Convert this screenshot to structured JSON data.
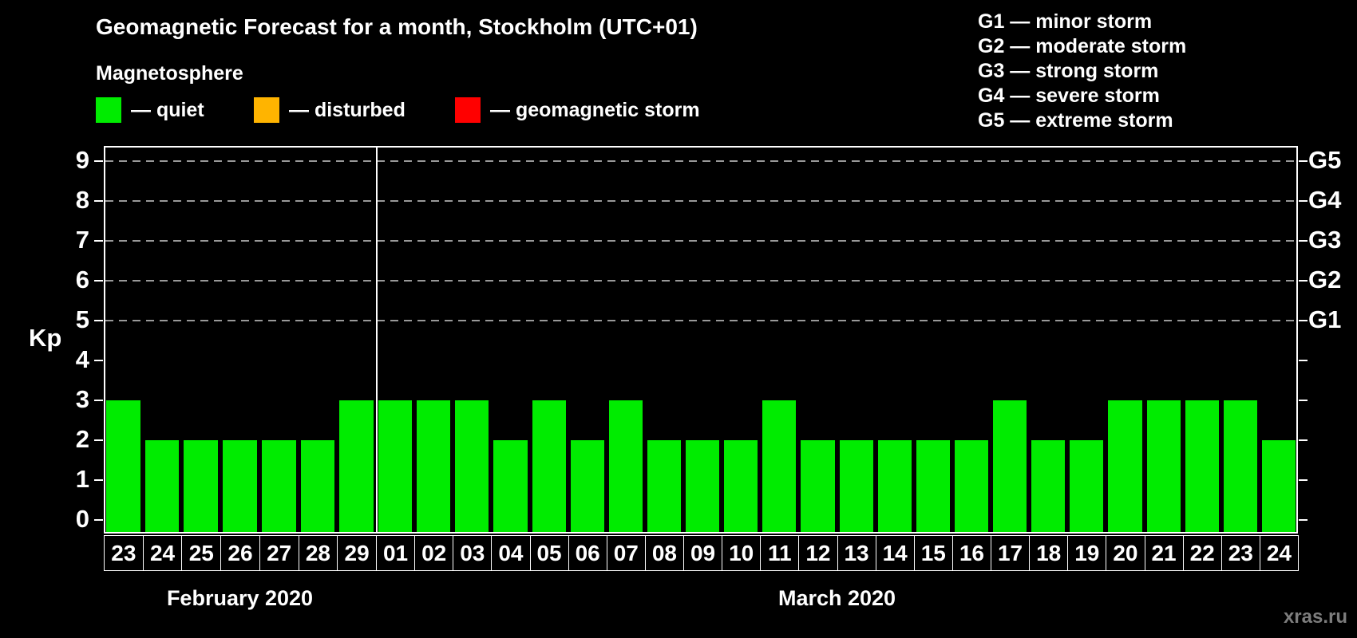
{
  "header": {
    "title": "Geomagnetic Forecast for a month, Stockholm (UTC+01)",
    "subtitle": "Magnetosphere"
  },
  "legend": {
    "items": [
      {
        "key": "quiet",
        "color": "#00ec00",
        "label": "— quiet"
      },
      {
        "key": "disturbed",
        "color": "#ffb400",
        "label": "— disturbed"
      },
      {
        "key": "geomagnetic-storm",
        "color": "#ff0000",
        "label": "— geomagnetic storm"
      }
    ]
  },
  "g_scale_legend": {
    "items": [
      "G1 — minor storm",
      "G2 — moderate storm",
      "G3 — strong storm",
      "G4 — severe storm",
      "G5 — extreme storm"
    ]
  },
  "chart_data": {
    "type": "bar",
    "title": "Geomagnetic Forecast for a month, Stockholm (UTC+01)",
    "ylabel": "Kp",
    "ylim": [
      0,
      9
    ],
    "yticks": [
      0,
      1,
      2,
      3,
      4,
      5,
      6,
      7,
      8,
      9
    ],
    "gridlines_at": [
      5,
      6,
      7,
      8,
      9
    ],
    "grid": true,
    "right_axis_labels": [
      {
        "value": 9,
        "label": "G5"
      },
      {
        "value": 8,
        "label": "G4"
      },
      {
        "value": 7,
        "label": "G3"
      },
      {
        "value": 6,
        "label": "G2"
      },
      {
        "value": 5,
        "label": "G1"
      }
    ],
    "bar_color": "#00ec00",
    "bar_status": "quiet",
    "sections": [
      {
        "month_label": "February 2020",
        "categories": [
          "23",
          "24",
          "25",
          "26",
          "27",
          "28",
          "29"
        ],
        "values": [
          3,
          2,
          2,
          2,
          2,
          2,
          3
        ]
      },
      {
        "month_label": "March 2020",
        "categories": [
          "01",
          "02",
          "03",
          "04",
          "05",
          "06",
          "07",
          "08",
          "09",
          "10",
          "11",
          "12",
          "13",
          "14",
          "15",
          "16",
          "17",
          "18",
          "19",
          "20",
          "21",
          "22",
          "23",
          "24"
        ],
        "values": [
          3,
          3,
          3,
          2,
          3,
          2,
          3,
          2,
          2,
          2,
          3,
          2,
          2,
          2,
          2,
          2,
          3,
          2,
          2,
          3,
          3,
          3,
          3,
          2
        ]
      }
    ]
  },
  "watermark": "xras.ru"
}
